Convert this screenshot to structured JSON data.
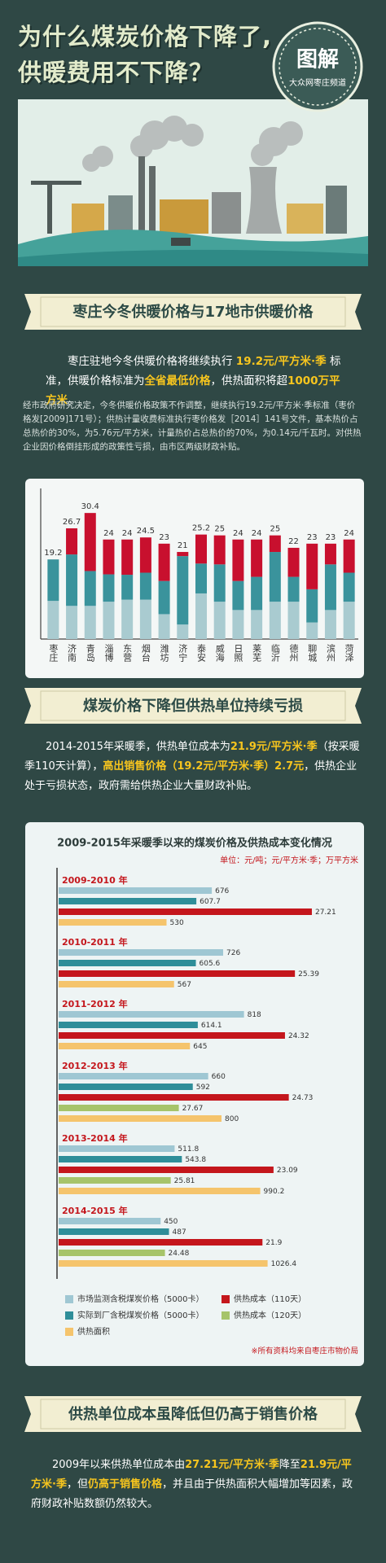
{
  "header": {
    "title_lines": [
      "为什么煤炭价格下降了,",
      "供暖费用不下降？"
    ],
    "stamp_title": "图解",
    "stamp_subtitle": "大众网枣庄频道"
  },
  "sections": [
    {
      "heading": "枣庄今冬供暖价格与17地市供暖价格",
      "paragraphs": [
        [
          {
            "text": "枣庄驻地今冬供暖价格将继续执行 "
          },
          {
            "text": "19.2元/平方米·季",
            "highlight": true
          },
          {
            "text": " 标准，供暖价格标准为"
          },
          {
            "text": "全省最低价格",
            "highlight": true
          },
          {
            "text": "，供热面积将超"
          },
          {
            "text": "1000万平方米",
            "highlight": true
          },
          {
            "text": "。"
          }
        ],
        [
          {
            "text": "经市政府研究决定，今冬供暖价格政策不作调整，继续执行19.2元/平方米·季标准（枣价格发[2009]171号）；供热计量收费标准执行枣价格发［2014］141号文件，基本热价占总热价的30%，为5.76元/平方米，计量热价占总热价的70%，为0.14元/千瓦时。对供热企业因价格倒挂形成的政策性亏损，由市区两级财政补贴。"
          }
        ]
      ]
    },
    {
      "heading": "煤炭价格下降但供热单位持续亏损",
      "paragraphs": [
        [
          {
            "text": "2014-2015年采暖季，供热单位成本为"
          },
          {
            "text": "21.9元/平方米·季",
            "highlight": true
          },
          {
            "text": "（按采暖季110天计算），"
          },
          {
            "text": "高出销售价格（19.2元/平方米·季）2.7元",
            "highlight": true
          },
          {
            "text": "，供热企业处于亏损状态，政府需给供热企业大量财政补贴。"
          }
        ]
      ]
    },
    {
      "heading": "供热单位成本虽降低但仍高于销售价格",
      "paragraphs": [
        [
          {
            "text": "2009年以来供热单位成本由"
          },
          {
            "text": "27.21元/平方米·季",
            "highlight": true
          },
          {
            "text": "降至"
          },
          {
            "text": "21.9元/平方米·季",
            "highlight": true
          },
          {
            "text": "，但"
          },
          {
            "text": "仍高于销售价格",
            "highlight": true
          },
          {
            "text": "，并且由于供热面积大幅增加等因素，政府财政补贴数额仍然较大。"
          }
        ]
      ]
    }
  ],
  "chart_data": [
    {
      "type": "stacked_bar",
      "categories": [
        "枣庄",
        "济南",
        "青岛",
        "淄博",
        "东营",
        "烟台",
        "潍坊",
        "济宁",
        "泰安",
        "威海",
        "日照",
        "莱芜",
        "临沂",
        "德州",
        "聊城",
        "滨州",
        "菏泽"
      ],
      "series": [
        {
          "color": "#a9cbd0",
          "values": [
            9.2,
            8,
            8,
            9,
            9.5,
            9.5,
            6,
            3.5,
            11,
            9,
            7,
            7,
            9,
            9,
            4,
            7,
            9
          ]
        },
        {
          "color": "#3a939c",
          "values": [
            10,
            12.4,
            8.4,
            6.6,
            6,
            6.5,
            8,
            16.5,
            7.2,
            9,
            7,
            8,
            12,
            6,
            8,
            11,
            7
          ]
        },
        {
          "color": "#c8102e",
          "values": [
            0,
            6.3,
            14,
            8.4,
            8.5,
            8.5,
            9,
            1,
            7,
            7,
            10,
            9,
            4,
            7,
            11,
            5,
            8
          ]
        }
      ],
      "totals": [
        19.2,
        26.7,
        30.4,
        24,
        24,
        24.5,
        23,
        21,
        25.2,
        25,
        24,
        24,
        25,
        22,
        23,
        23,
        24
      ],
      "ylim": [
        0,
        32
      ]
    },
    {
      "type": "hbar",
      "title": "2009-2015年采暖季以来的煤炭价格及供热成本变化情况",
      "unit": "单位：元/吨；元/平方米·季；万平方米",
      "note": "※所有资料均来自枣庄市物价局",
      "categories": [
        "2009-2010 年",
        "2010-2011 年",
        "2011-2012 年",
        "2012-2013 年",
        "2013-2014 年",
        "2014-2015 年"
      ],
      "series": [
        {
          "name": "市场监测含税煤炭价格（5000卡）",
          "color": "#9fc7d3",
          "xlim": [
            0,
            1150
          ],
          "values": [
            676,
            726,
            818,
            660,
            511.8,
            450
          ]
        },
        {
          "name": "实际到厂含税煤炭价格（5000卡）",
          "color": "#2f8e99",
          "xlim": [
            0,
            1150
          ],
          "values": [
            607.7,
            605.6,
            614.1,
            592,
            543.8,
            487
          ]
        },
        {
          "name": "供热成本（110天）",
          "color": "#c4161c",
          "xlim": [
            0,
            28
          ],
          "values": [
            27.21,
            25.39,
            24.32,
            24.73,
            23.09,
            21.9
          ]
        },
        {
          "name": "供热成本（120天）",
          "color": "#a6c46a",
          "xlim": [
            0,
            60
          ],
          "values": [
            null,
            null,
            null,
            27.67,
            25.81,
            24.48
          ]
        },
        {
          "name": "供热面积",
          "color": "#f5c46c",
          "xlim": [
            0,
            1280
          ],
          "values": [
            530,
            567,
            645,
            800,
            990.2,
            1026.4
          ]
        }
      ]
    }
  ]
}
